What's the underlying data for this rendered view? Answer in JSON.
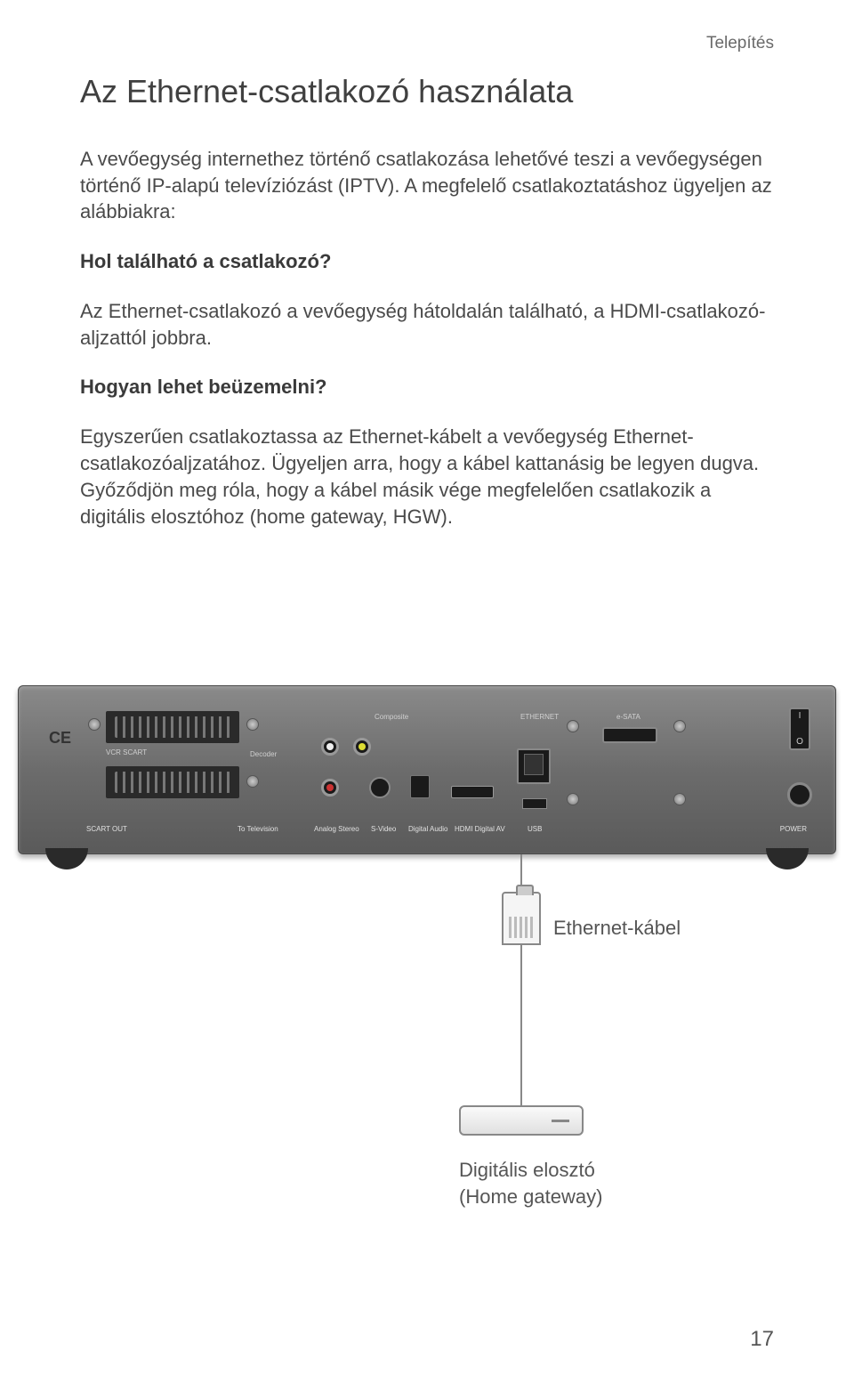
{
  "header": {
    "section": "Telepítés"
  },
  "title": "Az Ethernet-csatlakozó használata",
  "p1": "A vevőegység internethez történő csatlakozása lehetővé teszi a vevőegységen történő IP-alapú televíziózást (IPTV). A megfelelő csatlakoztatáshoz ügyeljen az alábbiakra:",
  "h2a": "Hol található a csatlakozó?",
  "p2": "Az Ethernet-csatlakozó a vevőegység hátoldalán található, a HDMI-csatlakozó-aljzattól jobbra.",
  "h2b": "Hogyan lehet beüzemelni?",
  "p3": "Egyszerűen csatlakoztassa az Ethernet-kábelt a vevőegység Ethernet-csatlakozóaljzatához. Ügyeljen arra, hogy a kábel kattanásig be legyen dugva. Győződjön meg róla, hogy a kábel másik vége megfelelően csatlakozik a digitális elosztóhoz (home gateway, HGW).",
  "device": {
    "labels": {
      "vcr_scart": "VCR SCART",
      "scart_out": "SCART OUT",
      "to_tv": "To Television",
      "composite": "Composite",
      "analog_stereo": "Analog Stereo",
      "svideo": "S-Video",
      "digital_audio": "Digital Audio",
      "hdmi": "HDMI Digital AV",
      "ethernet": "ETHERNET",
      "usb": "USB",
      "esata": "e-SATA",
      "power": "POWER",
      "decoder": "Decoder"
    },
    "colors": {
      "chassis_top": "#8a8a8a",
      "chassis_bottom": "#5a5a5a",
      "label_text": "#e0e0e0"
    }
  },
  "cable": {
    "label": "Ethernet-kábel",
    "gateway_label": "Digitális elosztó\n(Home gateway)"
  },
  "page_number": "17"
}
